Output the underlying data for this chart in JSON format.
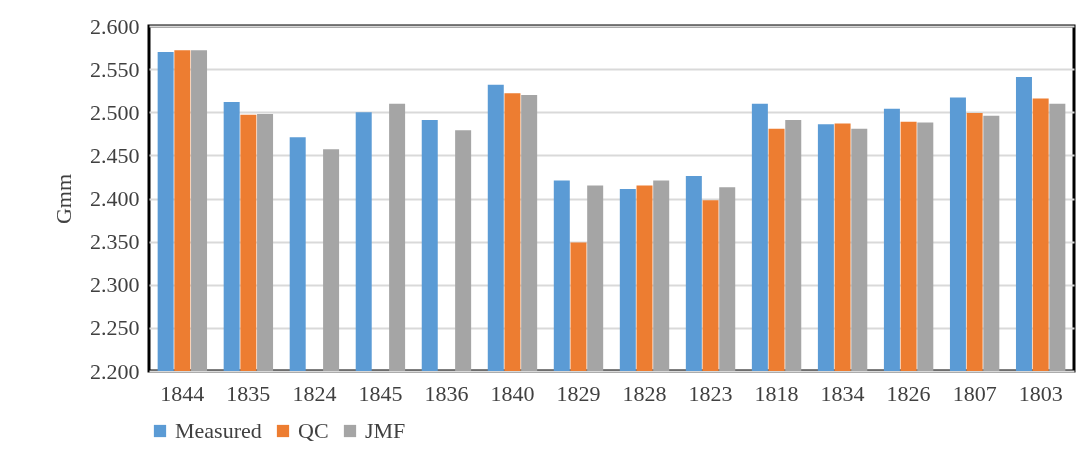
{
  "chart_data": {
    "type": "bar",
    "ylabel": "Gmm",
    "categories": [
      "1844",
      "1835",
      "1824",
      "1845",
      "1836",
      "1840",
      "1829",
      "1828",
      "1823",
      "1818",
      "1834",
      "1826",
      "1807",
      "1803"
    ],
    "series": [
      {
        "name": "Measured",
        "color": "#5b9bd5",
        "values": [
          2.57,
          2.512,
          2.471,
          2.5,
          2.491,
          2.532,
          2.421,
          2.411,
          2.426,
          2.51,
          2.486,
          2.504,
          2.517,
          2.541
        ]
      },
      {
        "name": "QC",
        "color": "#ed7d31",
        "values": [
          2.572,
          2.497,
          null,
          null,
          null,
          2.522,
          2.349,
          2.415,
          2.398,
          2.481,
          2.487,
          2.489,
          2.499,
          2.516
        ]
      },
      {
        "name": "JMF",
        "color": "#a5a5a5",
        "values": [
          2.572,
          2.498,
          2.457,
          2.51,
          2.479,
          2.52,
          2.415,
          2.421,
          2.413,
          2.491,
          2.481,
          2.488,
          2.496,
          2.51
        ]
      }
    ],
    "ylim": [
      2.2,
      2.6
    ],
    "yticks": [
      {
        "value": 2.2,
        "label": "2.200"
      },
      {
        "value": 2.25,
        "label": "2.250"
      },
      {
        "value": 2.3,
        "label": "2.300"
      },
      {
        "value": 2.35,
        "label": "2.350"
      },
      {
        "value": 2.4,
        "label": "2.400"
      },
      {
        "value": 2.45,
        "label": "2.450"
      },
      {
        "value": 2.5,
        "label": "2.500"
      },
      {
        "value": 2.55,
        "label": "2.550"
      },
      {
        "value": 2.6,
        "label": "2.600"
      }
    ],
    "grid": "y",
    "legend": "bottom"
  }
}
